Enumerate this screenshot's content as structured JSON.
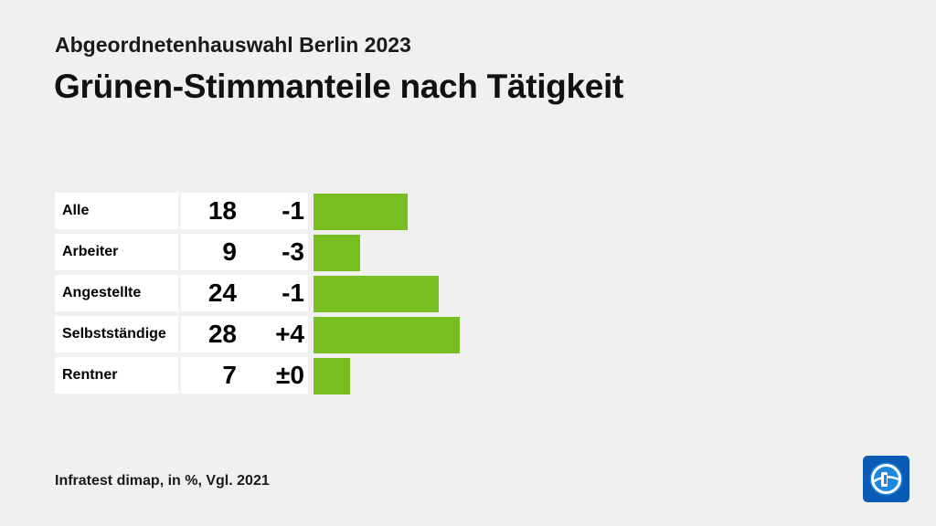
{
  "supertitle": "Abgeordnetenhauswahl Berlin 2023",
  "title": "Grünen-Stimmanteile nach Tätigkeit",
  "source": "Infratest dimap, in %, Vgl. 2021",
  "colors": {
    "bar": "#78be20",
    "background": "#f0f0f0",
    "logo": "#0a5bb5"
  },
  "logo_icon": "tagesschau-logo-icon",
  "chart_data": {
    "type": "bar",
    "orientation": "horizontal",
    "title": "Grünen-Stimmanteile nach Tätigkeit",
    "categories": [
      "Alle",
      "Arbeiter",
      "Angestellte",
      "Selbstständige",
      "Rentner"
    ],
    "values": [
      18,
      9,
      24,
      28,
      7
    ],
    "diff_labels": [
      "-1",
      "-3",
      "-1",
      "+4",
      "±0"
    ],
    "diff_values": [
      -1,
      -3,
      -1,
      4,
      0
    ],
    "unit": "%",
    "xlim": [
      0,
      30
    ],
    "grid": false
  }
}
